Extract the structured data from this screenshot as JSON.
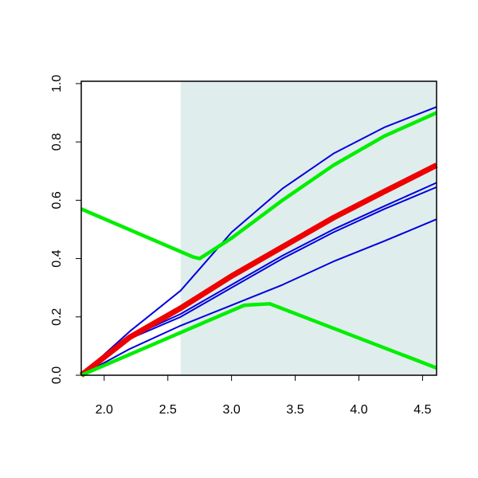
{
  "chart_data": {
    "type": "line",
    "xlim": [
      1.82,
      4.61
    ],
    "ylim": [
      0,
      1.008
    ],
    "xticks": [
      {
        "value": 2,
        "label": "2.0"
      },
      2.5,
      {
        "value": 3,
        "label": "3.0"
      },
      3.5,
      {
        "value": 4,
        "label": "4.0"
      },
      4.5
    ],
    "yticks": [
      {
        "value": 0,
        "label": "0.0"
      },
      0.2,
      0.4,
      0.6,
      0.8,
      {
        "value": 1,
        "label": "1.0"
      }
    ],
    "shade": {
      "xmin": 2.6,
      "color": "#e0eded"
    },
    "series": [
      {
        "color": "#0000dd",
        "width": 2,
        "x": [
          1.82,
          2.2,
          2.6,
          3.0,
          3.4,
          3.8,
          4.2,
          4.61
        ],
        "values": [
          0,
          0.15,
          0.29,
          0.49,
          0.64,
          0.76,
          0.85,
          0.92
        ]
      },
      {
        "color": "#0000dd",
        "width": 2,
        "x": [
          1.82,
          2.2,
          2.6,
          3.0,
          3.4,
          3.8,
          4.2,
          4.61
        ],
        "values": [
          0,
          0.13,
          0.21,
          0.31,
          0.41,
          0.5,
          0.58,
          0.66
        ]
      },
      {
        "color": "#0000dd",
        "width": 2,
        "x": [
          1.82,
          2.2,
          2.6,
          3.0,
          3.4,
          3.8,
          4.2,
          4.61
        ],
        "values": [
          0,
          0.125,
          0.2,
          0.3,
          0.4,
          0.49,
          0.57,
          0.645
        ]
      },
      {
        "color": "#0000dd",
        "width": 2,
        "x": [
          1.82,
          2.2,
          2.6,
          3.0,
          3.4,
          3.8,
          4.2,
          4.61
        ],
        "values": [
          0,
          0.09,
          0.17,
          0.24,
          0.31,
          0.39,
          0.46,
          0.535
        ]
      },
      {
        "color": "#ee0000",
        "width": 7,
        "x": [
          1.82,
          2.2,
          2.6,
          3.0,
          3.4,
          3.8,
          4.2,
          4.61
        ],
        "values": [
          0,
          0.13,
          0.23,
          0.34,
          0.44,
          0.54,
          0.63,
          0.72
        ]
      },
      {
        "color": "#00ee00",
        "width": 4.5,
        "x": [
          1.82,
          2.7,
          2.75,
          3.0,
          3.4,
          3.8,
          4.2,
          4.61
        ],
        "values": [
          0.57,
          0.405,
          0.4,
          0.47,
          0.6,
          0.72,
          0.82,
          0.9
        ]
      },
      {
        "color": "#00ee00",
        "width": 4.5,
        "x": [
          1.82,
          3.1,
          3.3,
          4.61
        ],
        "values": [
          0,
          0.24,
          0.245,
          0.025
        ]
      }
    ]
  }
}
